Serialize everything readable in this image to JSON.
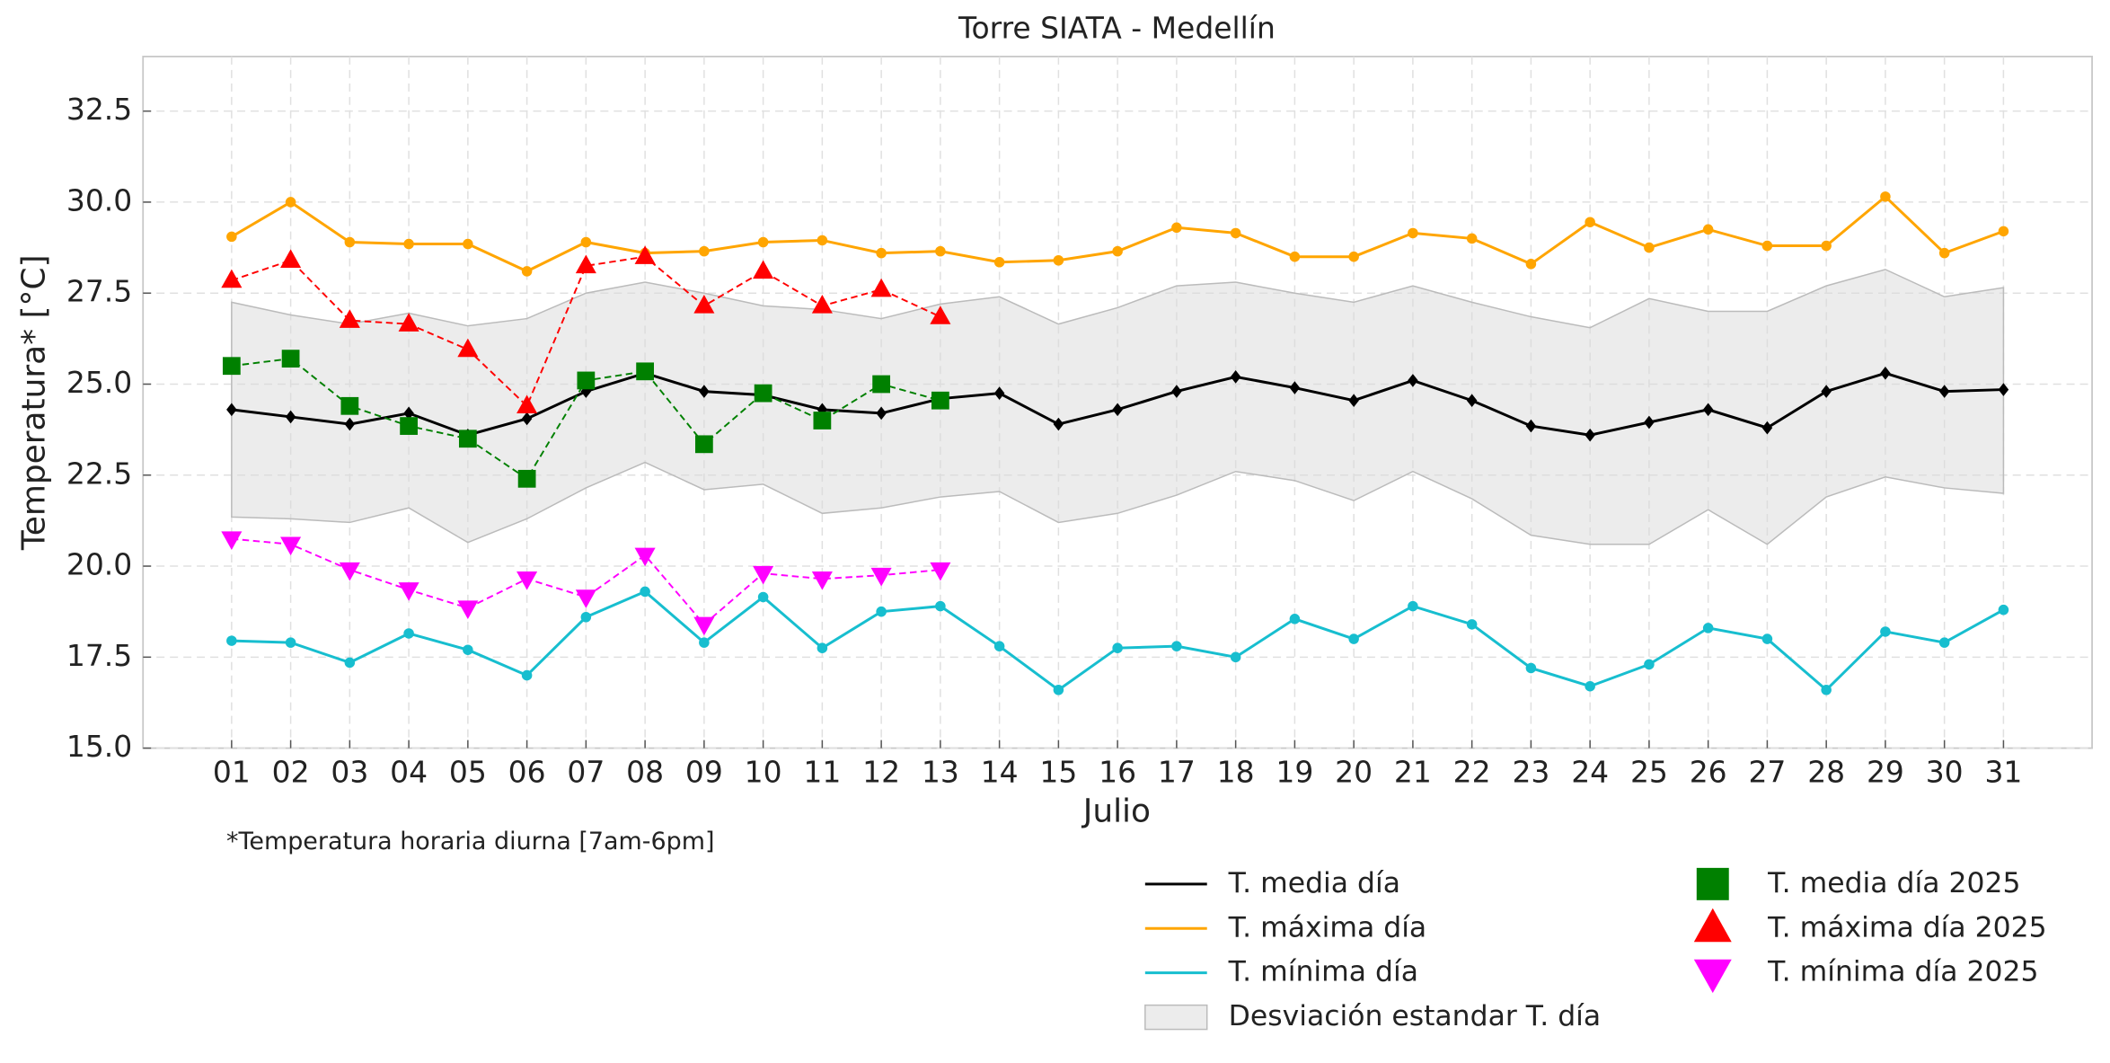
{
  "chart_data": {
    "type": "line",
    "title": "Torre SIATA - Medellín",
    "x_label": "Julio",
    "y_label": "Temperatura* [°C]",
    "footnote": "*Temperatura horaria diurna [7am-6pm]",
    "grid": true,
    "legend_position": "lower right",
    "categories": [
      "01",
      "02",
      "03",
      "04",
      "05",
      "06",
      "07",
      "08",
      "09",
      "10",
      "11",
      "12",
      "13",
      "14",
      "15",
      "16",
      "17",
      "18",
      "19",
      "20",
      "21",
      "22",
      "23",
      "24",
      "25",
      "26",
      "27",
      "28",
      "29",
      "30",
      "31"
    ],
    "ylim": [
      15,
      34
    ],
    "yticks": [
      {
        "value": 15,
        "label": "15.0"
      },
      17.5,
      {
        "value": 20,
        "label": "20.0"
      },
      22.5,
      {
        "value": 25,
        "label": "25.0"
      },
      27.5,
      {
        "value": 30,
        "label": "30.0"
      },
      32.5
    ],
    "band": {
      "name": "Desviación estandar T. día",
      "color": "#d9d9d9",
      "upper": [
        27.25,
        26.9,
        26.65,
        26.95,
        26.6,
        26.8,
        27.5,
        27.8,
        27.5,
        27.15,
        27.05,
        26.8,
        27.2,
        27.4,
        26.65,
        27.1,
        27.7,
        27.8,
        27.5,
        27.25,
        27.7,
        27.25,
        26.85,
        26.55,
        27.35,
        27.0,
        27.0,
        27.7,
        28.15,
        27.4,
        27.65
      ],
      "lower": [
        21.35,
        21.3,
        21.2,
        21.6,
        20.65,
        21.3,
        22.15,
        22.85,
        22.1,
        22.25,
        21.45,
        21.6,
        21.9,
        22.05,
        21.2,
        21.45,
        21.95,
        22.6,
        22.35,
        21.8,
        22.6,
        21.85,
        20.85,
        20.6,
        20.6,
        21.55,
        20.6,
        21.9,
        22.45,
        22.15,
        22.0
      ]
    },
    "series": [
      {
        "name": "T. media día",
        "color": "#000000",
        "marker": "diamond",
        "dashed": false,
        "values": [
          24.3,
          24.1,
          23.9,
          24.2,
          23.6,
          24.05,
          24.8,
          25.3,
          24.8,
          24.7,
          24.3,
          24.2,
          24.6,
          24.75,
          23.9,
          24.3,
          24.8,
          25.2,
          24.9,
          24.55,
          25.1,
          24.55,
          23.85,
          23.6,
          23.95,
          24.3,
          23.8,
          24.8,
          25.3,
          24.8,
          24.85
        ]
      },
      {
        "name": "T. máxima día",
        "color": "#ffa500",
        "marker": "circle",
        "dashed": false,
        "values": [
          29.05,
          30.0,
          28.9,
          28.85,
          28.85,
          28.1,
          28.9,
          28.6,
          28.65,
          28.9,
          28.95,
          28.6,
          28.65,
          28.35,
          28.4,
          28.65,
          29.3,
          29.15,
          28.5,
          28.5,
          29.15,
          29.0,
          28.3,
          29.45,
          28.75,
          29.25,
          28.8,
          28.8,
          30.15,
          28.6,
          29.2
        ]
      },
      {
        "name": "T. mínima día",
        "color": "#17becf",
        "marker": "circle",
        "dashed": false,
        "values": [
          17.95,
          17.9,
          17.35,
          18.15,
          17.7,
          17.0,
          18.6,
          19.3,
          17.9,
          19.15,
          17.75,
          18.75,
          18.9,
          17.8,
          16.6,
          17.75,
          17.8,
          17.5,
          18.55,
          18.0,
          18.9,
          18.4,
          17.2,
          16.7,
          17.3,
          18.3,
          18.0,
          16.6,
          18.2,
          17.9,
          18.8
        ]
      },
      {
        "name": "T. media día 2025",
        "color": "#008000",
        "marker": "square",
        "dashed": true,
        "values": [
          25.5,
          25.7,
          24.4,
          23.85,
          23.5,
          22.4,
          25.1,
          25.35,
          23.35,
          24.75,
          24.0,
          25.0,
          24.55,
          null,
          null,
          null,
          null,
          null,
          null,
          null,
          null,
          null,
          null,
          null,
          null,
          null,
          null,
          null,
          null,
          null,
          null
        ]
      },
      {
        "name": "T. máxima día 2025",
        "color": "#ff0000",
        "marker": "triangle-up",
        "dashed": true,
        "values": [
          27.85,
          28.4,
          26.75,
          26.65,
          25.95,
          24.4,
          28.25,
          28.5,
          27.15,
          28.1,
          27.15,
          27.6,
          26.85,
          null,
          null,
          null,
          null,
          null,
          null,
          null,
          null,
          null,
          null,
          null,
          null,
          null,
          null,
          null,
          null,
          null,
          null
        ]
      },
      {
        "name": "T. mínima día 2025",
        "color": "#ff00ff",
        "marker": "triangle-down",
        "dashed": true,
        "values": [
          20.75,
          20.6,
          19.9,
          19.35,
          18.85,
          19.65,
          19.15,
          20.3,
          18.4,
          19.8,
          19.65,
          19.75,
          19.9,
          null,
          null,
          null,
          null,
          null,
          null,
          null,
          null,
          null,
          null,
          null,
          null,
          null,
          null,
          null,
          null,
          null,
          null
        ]
      }
    ]
  }
}
